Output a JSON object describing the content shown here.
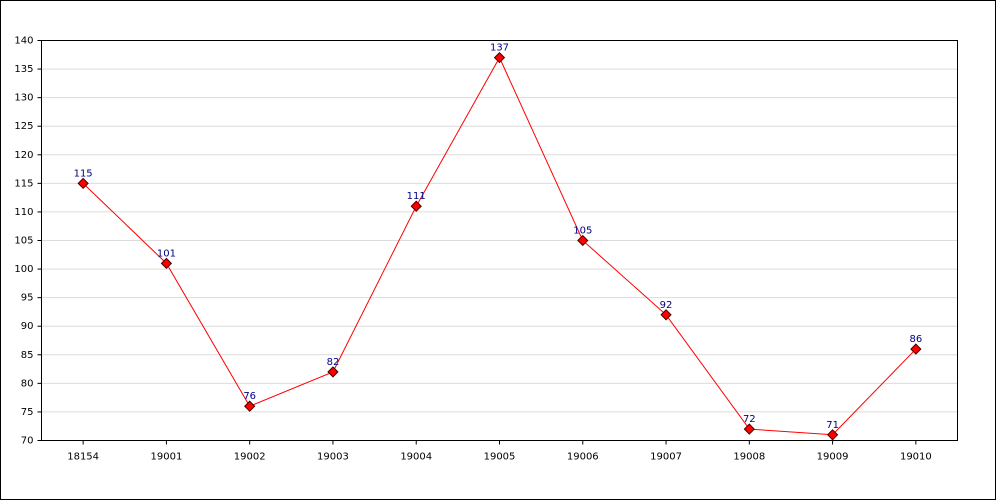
{
  "chart_data": {
    "type": "line",
    "categories": [
      "18154",
      "19001",
      "19002",
      "19003",
      "19004",
      "19005",
      "19006",
      "19007",
      "19008",
      "19009",
      "19010"
    ],
    "values": [
      115,
      101,
      76,
      82,
      111,
      137,
      105,
      92,
      72,
      71,
      86
    ],
    "color": "#ff0000",
    "label_color": "#000080",
    "ylim": [
      70,
      140
    ],
    "yticks": [
      70,
      75,
      80,
      85,
      90,
      95,
      100,
      105,
      110,
      115,
      120,
      125,
      130,
      135,
      140
    ],
    "grid": true
  }
}
